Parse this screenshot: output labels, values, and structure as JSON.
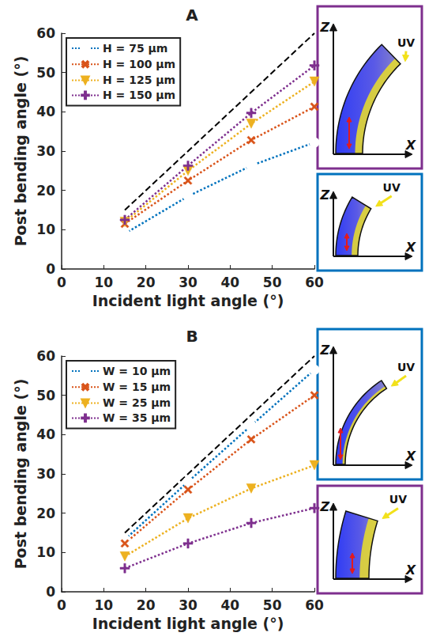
{
  "chart_data": [
    {
      "type": "line",
      "title": "A",
      "x_label": "Incident light angle (°)",
      "y_label": "Post bending angle (°)",
      "x": [
        15,
        30,
        45,
        60
      ],
      "series": [
        {
          "name": "H = 75 μm",
          "color": "#0072BD",
          "marker": "circle",
          "line_style": "dotted",
          "values": [
            9.0,
            18.5,
            26.3,
            32.2
          ]
        },
        {
          "name": "H = 100 μm",
          "color": "#D95319",
          "marker": "x",
          "line_style": "dotted",
          "values": [
            11.5,
            22.5,
            32.8,
            41.3
          ]
        },
        {
          "name": "H = 125 μm",
          "color": "#EDB120",
          "marker": "triangle-down",
          "line_style": "dotted",
          "values": [
            12.0,
            25.0,
            37.0,
            47.7
          ]
        },
        {
          "name": "H = 150 μm",
          "color": "#7E2F8E",
          "marker": "plus",
          "line_style": "dotted",
          "values": [
            12.5,
            26.3,
            39.7,
            51.8
          ]
        }
      ],
      "reference_line": {
        "x": [
          15,
          60
        ],
        "values": [
          15,
          60
        ],
        "color": "#000000",
        "line_style": "dashed"
      },
      "xlim": [
        0,
        60
      ],
      "ylim": [
        0,
        60
      ],
      "xticks": [
        0,
        10,
        20,
        30,
        40,
        50,
        60
      ],
      "yticks": [
        0,
        10,
        20,
        30,
        40,
        50,
        60
      ],
      "grid": false,
      "legend": "upper left",
      "insets": [
        {
          "color": "#7E2F8E",
          "light_label": "UV",
          "z_label": "Z",
          "x_label": "X"
        },
        {
          "color": "#0072BD",
          "light_label": "UV",
          "z_label": "Z",
          "x_label": "X"
        }
      ]
    },
    {
      "type": "line",
      "title": "B",
      "x_label": "Incident light angle (°)",
      "y_label": "Post bending angle (°)",
      "x": [
        15,
        30,
        45,
        60
      ],
      "series": [
        {
          "name": "W = 10 μm",
          "color": "#0072BD",
          "marker": "circle",
          "line_style": "dotted",
          "values": [
            13.3,
            28.0,
            42.3,
            56.5
          ]
        },
        {
          "name": "W = 15 μm",
          "color": "#D95319",
          "marker": "x",
          "line_style": "dotted",
          "values": [
            12.3,
            26.0,
            38.8,
            50.0
          ]
        },
        {
          "name": "W = 25 μm",
          "color": "#EDB120",
          "marker": "triangle-down",
          "line_style": "dotted",
          "values": [
            9.0,
            18.7,
            26.3,
            32.2
          ]
        },
        {
          "name": "W = 35 μm",
          "color": "#7E2F8E",
          "marker": "plus",
          "line_style": "dotted",
          "values": [
            6.0,
            12.3,
            17.5,
            21.3
          ]
        }
      ],
      "reference_line": {
        "x": [
          15,
          60
        ],
        "values": [
          15,
          60
        ],
        "color": "#000000",
        "line_style": "dashed"
      },
      "xlim": [
        0,
        60
      ],
      "ylim": [
        0,
        60
      ],
      "xticks": [
        0,
        10,
        20,
        30,
        40,
        50,
        60
      ],
      "yticks": [
        0,
        10,
        20,
        30,
        40,
        50,
        60
      ],
      "grid": false,
      "legend": "upper left",
      "insets": [
        {
          "color": "#0072BD",
          "light_label": "UV",
          "z_label": "Z",
          "x_label": "X"
        },
        {
          "color": "#7E2F8E",
          "light_label": "UV",
          "z_label": "Z",
          "x_label": "X"
        }
      ]
    }
  ]
}
